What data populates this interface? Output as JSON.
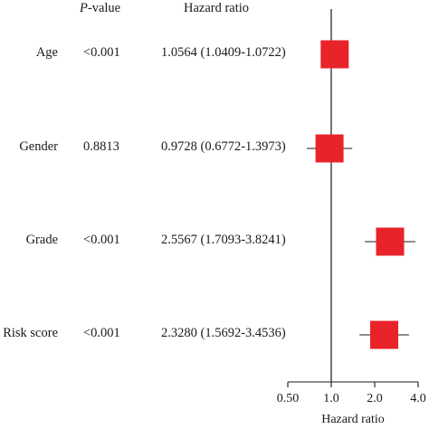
{
  "headers": {
    "pvalue_italic": "P",
    "pvalue_rest": "-value",
    "hazard": "Hazard ratio"
  },
  "rows": [
    {
      "label": "Age",
      "p": "<0.001",
      "hr_text": "1.0564 (1.0409-1.0722)"
    },
    {
      "label": "Gender",
      "p": "0.8813",
      "hr_text": "0.9728 (0.6772-1.3973)"
    },
    {
      "label": "Grade",
      "p": "<0.001",
      "hr_text": "2.5567 (1.7093-3.8241)"
    },
    {
      "label": "Risk score",
      "p": "<0.001",
      "hr_text": "2.3280 (1.5692-3.4536)"
    }
  ],
  "chart_data": {
    "type": "forest",
    "xlabel": "Hazard ratio",
    "x_scale": "log",
    "xlim": [
      0.5,
      4.0
    ],
    "ticks": [
      "0.50",
      "1.0",
      "2.0",
      "4.0"
    ],
    "tick_values": [
      0.5,
      1.0,
      2.0,
      4.0
    ],
    "reference_line": 1.0,
    "marker_color": "#e8232a",
    "points": [
      {
        "label": "Age",
        "hr": 1.0564,
        "lower": 1.0409,
        "upper": 1.0722
      },
      {
        "label": "Gender",
        "hr": 0.9728,
        "lower": 0.6772,
        "upper": 1.3973
      },
      {
        "label": "Grade",
        "hr": 2.5567,
        "lower": 1.7093,
        "upper": 3.8241
      },
      {
        "label": "Risk score",
        "hr": 2.328,
        "lower": 1.5692,
        "upper": 3.4536
      }
    ]
  }
}
